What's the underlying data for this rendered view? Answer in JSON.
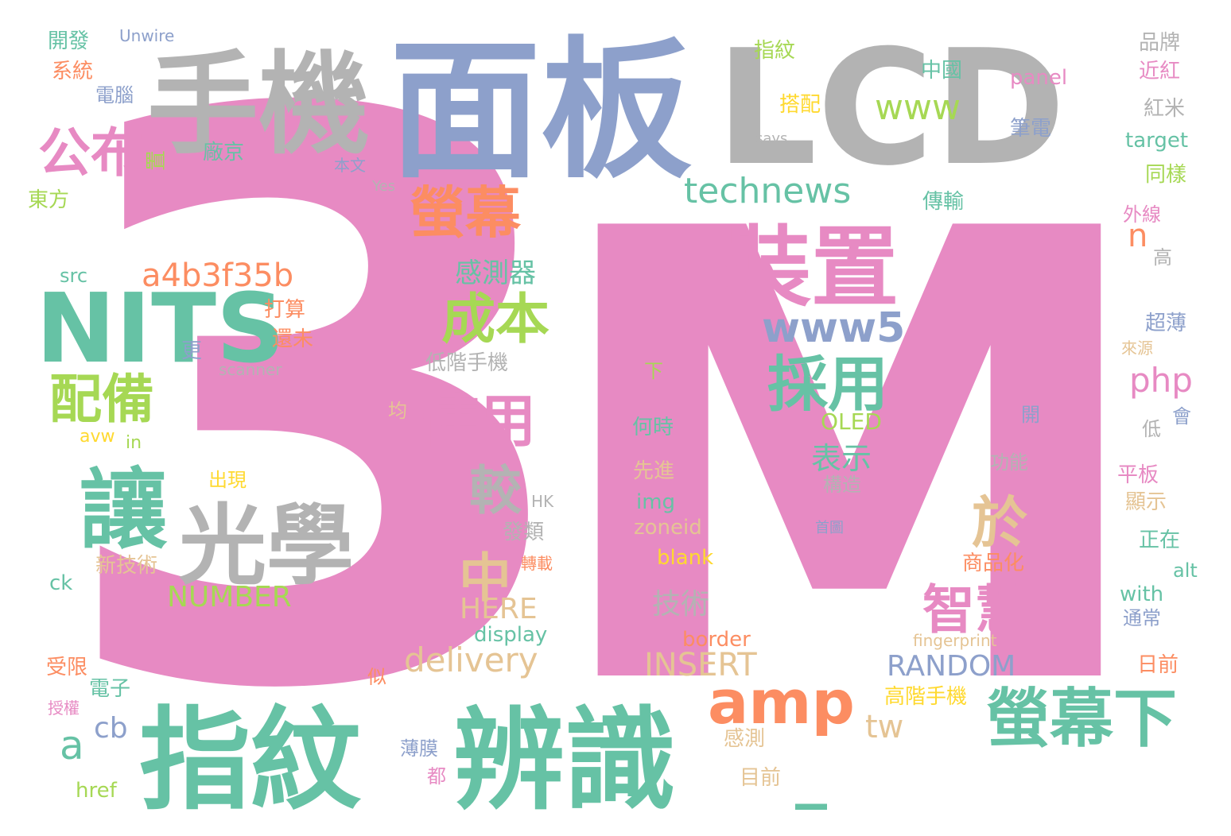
{
  "palette": {
    "pink": "#e78ac3",
    "green": "#66c2a5",
    "blue": "#8da0cb",
    "grey": "#b3b3b3",
    "orange": "#fc8d62",
    "lime": "#a6d854",
    "tan": "#e5c494",
    "yellow": "#ffd92f"
  },
  "words": [
    {
      "text": "3",
      "color": "pink"
    },
    {
      "text": "M",
      "color": "pink"
    },
    {
      "text": "_",
      "color": "green"
    },
    {
      "text": "面板",
      "color": "blue"
    },
    {
      "text": "LCD",
      "color": "grey"
    },
    {
      "text": "手機",
      "color": "grey"
    },
    {
      "text": "指紋",
      "color": "green"
    },
    {
      "text": "辨識",
      "color": "green"
    },
    {
      "text": "NITS",
      "color": "green"
    },
    {
      "text": "光學",
      "color": "grey"
    },
    {
      "text": "讓",
      "color": "green"
    },
    {
      "text": "裝置",
      "color": "pink"
    },
    {
      "text": "螢幕下",
      "color": "green"
    },
    {
      "text": "amp",
      "color": "orange"
    },
    {
      "text": "公布",
      "color": "pink"
    },
    {
      "text": "螢幕",
      "color": "orange"
    },
    {
      "text": "成本",
      "color": "lime"
    },
    {
      "text": "採用",
      "color": "green"
    },
    {
      "text": "使用",
      "color": "pink"
    },
    {
      "text": "配備",
      "color": "lime"
    },
    {
      "text": "智慧",
      "color": "pink"
    },
    {
      "text": "於",
      "color": "tan"
    },
    {
      "text": "較",
      "color": "grey"
    },
    {
      "text": "中",
      "color": "tan"
    },
    {
      "text": "www5",
      "color": "blue"
    },
    {
      "text": "technews",
      "color": "green"
    },
    {
      "text": "www",
      "color": "lime"
    },
    {
      "text": "a4b3f35b",
      "color": "orange"
    },
    {
      "text": "delivery",
      "color": "tan"
    },
    {
      "text": "INSERT",
      "color": "tan"
    },
    {
      "text": "RANDOM",
      "color": "blue"
    },
    {
      "text": "NUMBER",
      "color": "lime"
    },
    {
      "text": "HERE",
      "color": "tan"
    },
    {
      "text": "php",
      "color": "pink"
    },
    {
      "text": "tw",
      "color": "tan"
    },
    {
      "text": "n",
      "color": "orange"
    },
    {
      "text": "a",
      "color": "green"
    },
    {
      "text": "cb",
      "color": "blue"
    },
    {
      "text": "感測器",
      "color": "green"
    },
    {
      "text": "表示",
      "color": "green"
    },
    {
      "text": "技術",
      "color": "grey"
    },
    {
      "text": "開發",
      "color": "green"
    },
    {
      "text": "Unwire",
      "color": "blue"
    },
    {
      "text": "系統",
      "color": "orange"
    },
    {
      "text": "電腦",
      "color": "blue"
    },
    {
      "text": "廠京",
      "color": "green"
    },
    {
      "text": "置",
      "color": "lime"
    },
    {
      "text": "本文",
      "color": "blue"
    },
    {
      "text": "Yes",
      "color": "grey"
    },
    {
      "text": "says",
      "color": "grey"
    },
    {
      "text": "東方",
      "color": "lime"
    },
    {
      "text": "src",
      "color": "green"
    },
    {
      "text": "打算",
      "color": "orange"
    },
    {
      "text": "還未",
      "color": "orange"
    },
    {
      "text": "更",
      "color": "blue"
    },
    {
      "text": "scanner",
      "color": "grey"
    },
    {
      "text": "低階手機",
      "color": "grey"
    },
    {
      "text": "下",
      "color": "lime"
    },
    {
      "text": "均",
      "color": "tan"
    },
    {
      "text": "avw",
      "color": "yellow"
    },
    {
      "text": "in",
      "color": "lime"
    },
    {
      "text": "出現",
      "color": "yellow"
    },
    {
      "text": "ck",
      "color": "green"
    },
    {
      "text": "新技術",
      "color": "tan"
    },
    {
      "text": "HK",
      "color": "grey"
    },
    {
      "text": "發類",
      "color": "grey"
    },
    {
      "text": "轉載",
      "color": "orange"
    },
    {
      "text": "何時",
      "color": "green"
    },
    {
      "text": "OLED",
      "color": "lime"
    },
    {
      "text": "先進",
      "color": "tan"
    },
    {
      "text": "img",
      "color": "green"
    },
    {
      "text": "zoneid",
      "color": "tan"
    },
    {
      "text": "blank",
      "color": "yellow"
    },
    {
      "text": "border",
      "color": "orange"
    },
    {
      "text": "display",
      "color": "green"
    },
    {
      "text": "fingerprint",
      "color": "tan"
    },
    {
      "text": "高階手機",
      "color": "yellow"
    },
    {
      "text": "感測",
      "color": "tan"
    },
    {
      "text": "目前",
      "color": "tan"
    },
    {
      "text": "薄膜",
      "color": "blue"
    },
    {
      "text": "都",
      "color": "pink"
    },
    {
      "text": "href",
      "color": "lime"
    },
    {
      "text": "受限",
      "color": "orange"
    },
    {
      "text": "電子",
      "color": "green"
    },
    {
      "text": "授權",
      "color": "pink"
    },
    {
      "text": "似",
      "color": "orange"
    },
    {
      "text": "指紋",
      "color": "lime"
    },
    {
      "text": "中國",
      "color": "green"
    },
    {
      "text": "搭配",
      "color": "yellow"
    },
    {
      "text": "panel",
      "color": "pink"
    },
    {
      "text": "筆電",
      "color": "blue"
    },
    {
      "text": "傳輸",
      "color": "green"
    },
    {
      "text": "品牌",
      "color": "grey"
    },
    {
      "text": "近紅",
      "color": "pink"
    },
    {
      "text": "紅米",
      "color": "grey"
    },
    {
      "text": "target",
      "color": "green"
    },
    {
      "text": "同樣",
      "color": "lime"
    },
    {
      "text": "外線",
      "color": "pink"
    },
    {
      "text": "高",
      "color": "grey"
    },
    {
      "text": "超薄",
      "color": "blue"
    },
    {
      "text": "來源",
      "color": "tan"
    },
    {
      "text": "開",
      "color": "blue"
    },
    {
      "text": "低",
      "color": "grey"
    },
    {
      "text": "會",
      "color": "blue"
    },
    {
      "text": "功能",
      "color": "grey"
    },
    {
      "text": "構造",
      "color": "grey"
    },
    {
      "text": "平板",
      "color": "pink"
    },
    {
      "text": "顯示",
      "color": "tan"
    },
    {
      "text": "正在",
      "color": "green"
    },
    {
      "text": "alt",
      "color": "green"
    },
    {
      "text": "with",
      "color": "green"
    },
    {
      "text": "通常",
      "color": "blue"
    },
    {
      "text": "日前",
      "color": "orange"
    },
    {
      "text": "商品化",
      "color": "orange"
    },
    {
      "text": "首圖",
      "color": "blue"
    }
  ]
}
